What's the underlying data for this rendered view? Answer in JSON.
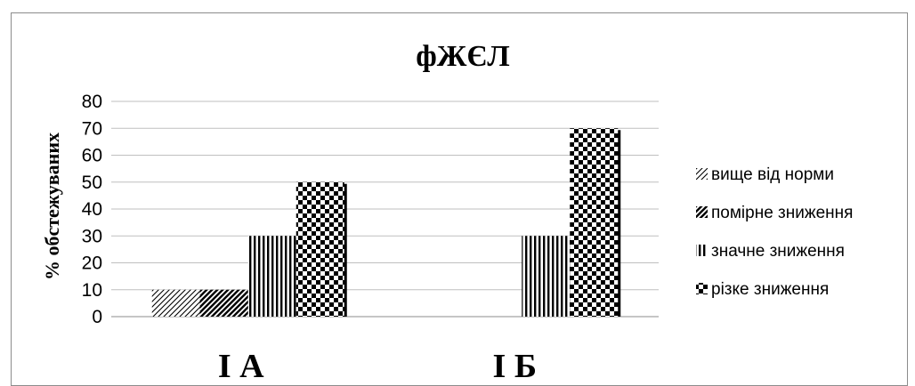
{
  "chart_data": {
    "type": "bar",
    "title": "фЖЄЛ",
    "ylabel": "% обстежуваних",
    "xlabel": "",
    "ylim": [
      0,
      80
    ],
    "yticks": [
      0,
      10,
      20,
      30,
      40,
      50,
      60,
      70,
      80
    ],
    "grid": true,
    "legend_position": "right",
    "categories": [
      "І А",
      "І Б"
    ],
    "series": [
      {
        "name": "вище від норми",
        "pattern": "diagonal-thin",
        "values": [
          10,
          0
        ]
      },
      {
        "name": "помірне зниження",
        "pattern": "diagonal-bold",
        "values": [
          10,
          0
        ]
      },
      {
        "name": "значне зниження",
        "pattern": "vertical-stripes",
        "values": [
          30,
          30
        ]
      },
      {
        "name": "різке зниження",
        "pattern": "checker",
        "values": [
          50,
          70
        ]
      }
    ],
    "colors": {
      "ink": "#000000",
      "grid": "#bfbfbf",
      "axis": "#8c8c8c",
      "background": "#ffffff"
    }
  }
}
